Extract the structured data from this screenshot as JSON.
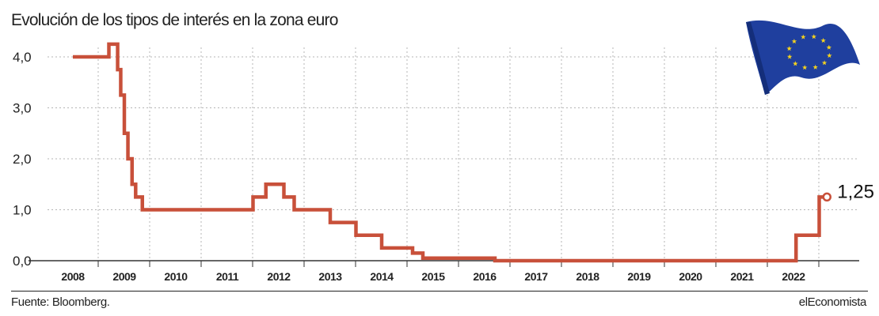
{
  "header": {
    "title": "Evolución de los tipos de interés en la zona euro"
  },
  "footer": {
    "source": "Fuente: Bloomberg.",
    "brand": "elEconomista"
  },
  "flag": {
    "icon": "eu-flag-icon",
    "field_color": "#1f3f9e",
    "star_color": "#f4d21f"
  },
  "chart_data": {
    "type": "line",
    "step": true,
    "title": "Evolución de los tipos de interés en la zona euro",
    "xlabel": "",
    "ylabel": "",
    "ylim": [
      0,
      4.5
    ],
    "xlim": [
      2007.5,
      2023.5
    ],
    "y_ticks": [
      {
        "value": 0,
        "label": "0,0"
      },
      {
        "value": 1,
        "label": "1,0"
      },
      {
        "value": 2,
        "label": "2,0"
      },
      {
        "value": 3,
        "label": "3,0"
      },
      {
        "value": 4,
        "label": "4,0"
      }
    ],
    "x_ticks": [
      "2008",
      "2009",
      "2010",
      "2011",
      "2012",
      "2013",
      "2014",
      "2015",
      "2016",
      "2017",
      "2018",
      "2019",
      "2020",
      "2021",
      "2022"
    ],
    "grid": true,
    "line_color": "#c8503a",
    "series": [
      {
        "x": [
          2007.5,
          2008.5,
          2008.7,
          2008.8,
          2008.87,
          2008.93,
          2009.0,
          2009.07,
          2009.15,
          2009.22,
          2009.35,
          2010.0,
          2011.0,
          2011.25,
          2011.5,
          2011.75,
          2011.95,
          2012.1,
          2012.3,
          2012.6,
          2013.0,
          2013.3,
          2013.5,
          2013.8,
          2014.0,
          2014.3,
          2014.6,
          2014.8,
          2015.0,
          2016.0,
          2016.2,
          2017.0,
          2020.0,
          2021.0,
          2021.6,
          2021.92,
          2022.05,
          2022.2,
          2022.35,
          2022.5,
          2022.55,
          2022.65
        ],
        "y": [
          4.0,
          4.0,
          4.25,
          4.25,
          3.75,
          3.25,
          2.5,
          2.0,
          1.5,
          1.25,
          1.0,
          1.0,
          1.0,
          1.0,
          1.25,
          1.5,
          1.5,
          1.25,
          1.0,
          1.0,
          0.75,
          0.75,
          0.5,
          0.5,
          0.25,
          0.25,
          0.15,
          0.05,
          0.05,
          0.05,
          0.0,
          0.0,
          0.0,
          0.0,
          0.0,
          0.0,
          0.5,
          0.5,
          0.5,
          1.25,
          1.25,
          1.25
        ]
      }
    ],
    "annotations": [
      {
        "x": 2022.65,
        "y": 1.25,
        "text": "1,25"
      }
    ]
  }
}
